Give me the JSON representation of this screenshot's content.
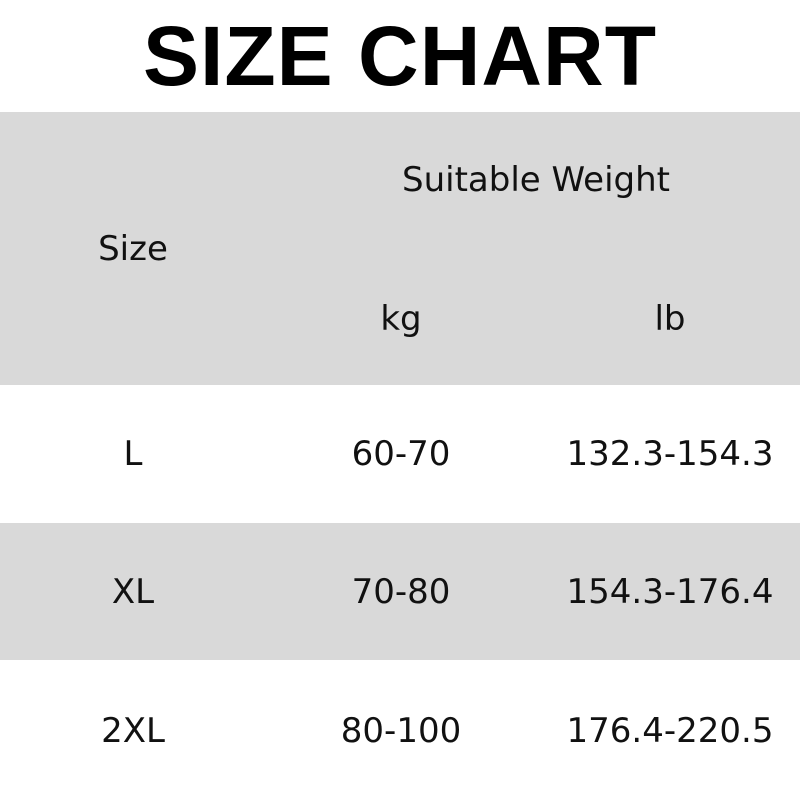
{
  "title": "SIZE CHART",
  "header": {
    "size": "Size",
    "group": "Suitable Weight",
    "kg": "kg",
    "lb": "lb"
  },
  "rows": [
    {
      "size": "L",
      "kg": "60-70",
      "lb": "132.3-154.3"
    },
    {
      "size": "XL",
      "kg": "70-80",
      "lb": "154.3-176.4"
    },
    {
      "size": "2XL",
      "kg": "80-100",
      "lb": "176.4-220.5"
    }
  ],
  "colors": {
    "header_bg": "#d9d9d9",
    "alt_row_bg": "#d9d9d9"
  }
}
